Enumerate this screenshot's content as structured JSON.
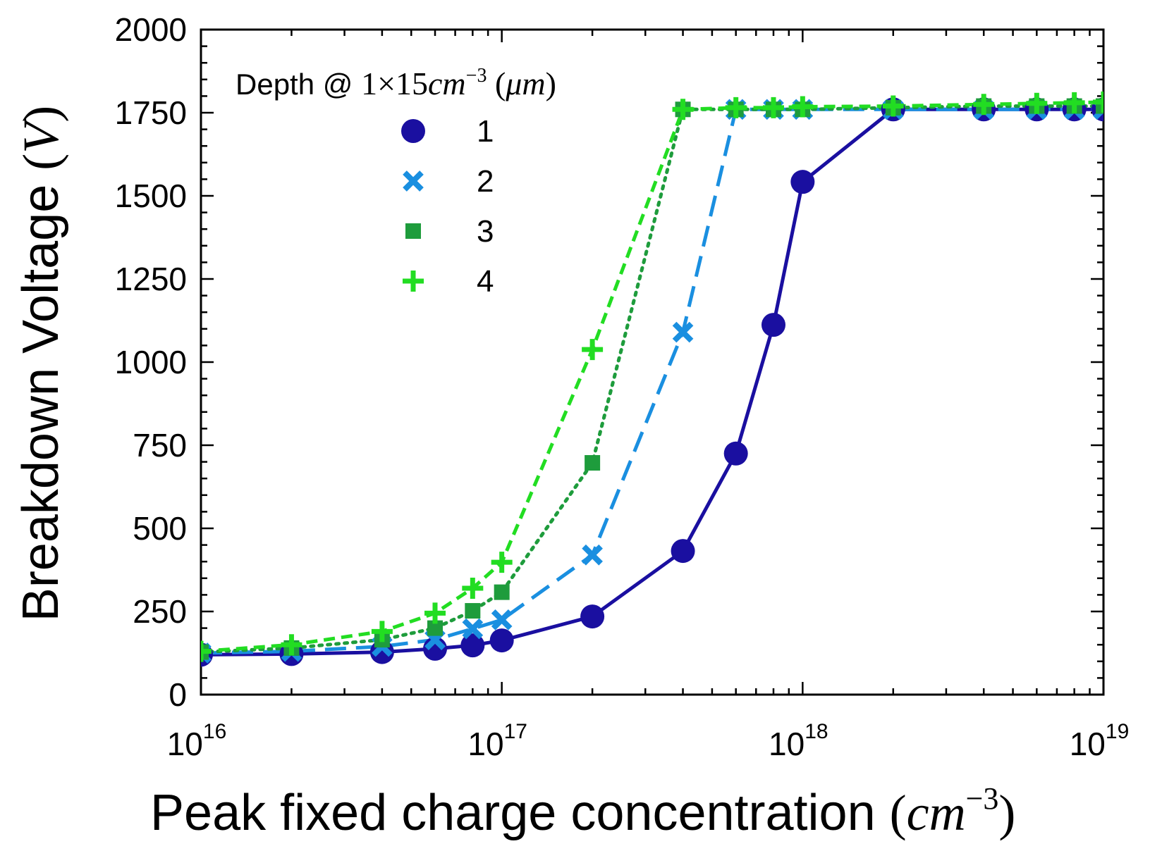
{
  "chart_data": {
    "type": "line",
    "x_scale": "log",
    "x_tick_labels": [
      {
        "base": "10",
        "exp": "16",
        "value": 1e+16
      },
      {
        "base": "10",
        "exp": "17",
        "value": 1e+17
      },
      {
        "base": "10",
        "exp": "18",
        "value": 1e+18
      },
      {
        "base": "10",
        "exp": "19",
        "value": 1e+19
      }
    ],
    "y_ticks": [
      "0",
      "250",
      "500",
      "750",
      "1000",
      "1250",
      "1500",
      "1750",
      "2000"
    ],
    "xlim": [
      1e+16,
      1e+19
    ],
    "ylim": [
      0,
      2000
    ],
    "xlabel": {
      "text": "Peak fixed charge concentration ",
      "paren_open": "(",
      "unit": "cm",
      "sup": "−3",
      "paren_close": ")"
    },
    "ylabel": {
      "text": "Breakdown Voltage ",
      "paren_open": "(",
      "unit": "V",
      "paren_close": ")"
    },
    "legend": {
      "title_text": "Depth @ ",
      "title_math": "1×15",
      "title_unit": "cm",
      "title_sup": "−3",
      "title_tail": " (",
      "title_mu": "μm",
      "title_close": ")"
    },
    "series": [
      {
        "name": "1",
        "marker": "circle",
        "line": "solid",
        "color": "#1a0fa0",
        "x": [
          1e+16,
          2e+16,
          4e+16,
          6e+16,
          8e+16,
          1e+17,
          2e+17,
          4e+17,
          6e+17,
          8e+17,
          1e+18,
          2e+18,
          4e+18,
          6e+18,
          8e+18,
          1e+19
        ],
        "y": [
          120,
          122,
          128,
          138,
          148,
          163,
          235,
          432,
          725,
          1112,
          1542,
          1760,
          1760,
          1760,
          1760,
          1760
        ]
      },
      {
        "name": "2",
        "marker": "x",
        "line": "longdash",
        "color": "#1a8fe0",
        "x": [
          1e+16,
          2e+16,
          4e+16,
          6e+16,
          8e+16,
          1e+17,
          2e+17,
          4e+17,
          6e+17,
          8e+17,
          1e+18,
          2e+18,
          4e+18,
          6e+18,
          8e+18,
          1e+19
        ],
        "y": [
          125,
          130,
          145,
          165,
          198,
          225,
          420,
          1090,
          1760,
          1760,
          1760,
          1760,
          1760,
          1760,
          1760,
          1760
        ]
      },
      {
        "name": "3",
        "marker": "square",
        "line": "dotted",
        "color": "#1e9c3c",
        "x": [
          1e+16,
          2e+16,
          4e+16,
          6e+16,
          8e+16,
          1e+17,
          2e+17,
          4e+17,
          6e+17,
          8e+17,
          1e+18,
          2e+18,
          4e+18,
          6e+18,
          8e+18,
          1e+19
        ],
        "y": [
          128,
          140,
          165,
          200,
          252,
          308,
          697,
          1760,
          1760,
          1760,
          1760,
          1765,
          1770,
          1770,
          1770,
          1770
        ]
      },
      {
        "name": "4",
        "marker": "plus",
        "line": "shortdash",
        "color": "#22dd22",
        "x": [
          1e+16,
          2e+16,
          4e+16,
          6e+16,
          8e+16,
          1e+17,
          2e+17,
          4e+17,
          6e+17,
          8e+17,
          1e+18,
          2e+18,
          4e+18,
          6e+18,
          8e+18,
          1e+19
        ],
        "y": [
          130,
          150,
          190,
          245,
          320,
          398,
          1038,
          1760,
          1765,
          1765,
          1768,
          1770,
          1775,
          1778,
          1780,
          1782
        ]
      }
    ]
  }
}
